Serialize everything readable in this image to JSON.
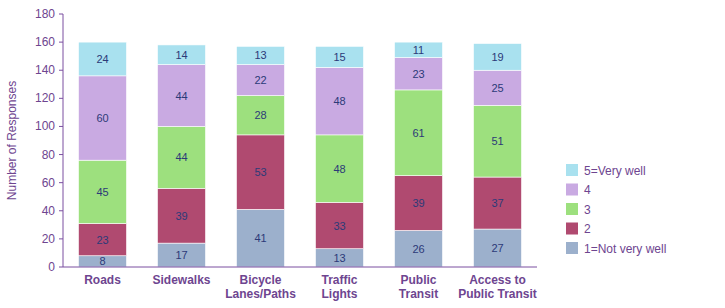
{
  "chart_data": {
    "type": "bar",
    "stacked": true,
    "data_labels": true,
    "legend": "right",
    "grid": false,
    "y_label": "Number of Responses",
    "categories": [
      "Roads",
      "Sidewalks",
      "Bicycle Lanes/Paths",
      "Traffic Lights",
      "Public Transit",
      "Access to Public Transit"
    ],
    "ylim": [
      0,
      180
    ],
    "yticks": [
      0,
      20,
      40,
      60,
      80,
      100,
      120,
      140,
      160,
      180
    ],
    "series": [
      {
        "name": "1=Not very well",
        "color": "#9cb0cc",
        "values": [
          8,
          17,
          41,
          13,
          26,
          27
        ]
      },
      {
        "name": "2",
        "color": "#b04a70",
        "values": [
          23,
          39,
          53,
          33,
          39,
          37
        ]
      },
      {
        "name": "3",
        "color": "#9de07e",
        "values": [
          45,
          44,
          28,
          48,
          61,
          51
        ]
      },
      {
        "name": "4",
        "color": "#c9aae2",
        "values": [
          60,
          44,
          22,
          48,
          23,
          25
        ]
      },
      {
        "name": "5=Very well",
        "color": "#a9e1ef",
        "values": [
          24,
          14,
          13,
          15,
          11,
          19
        ]
      }
    ]
  }
}
